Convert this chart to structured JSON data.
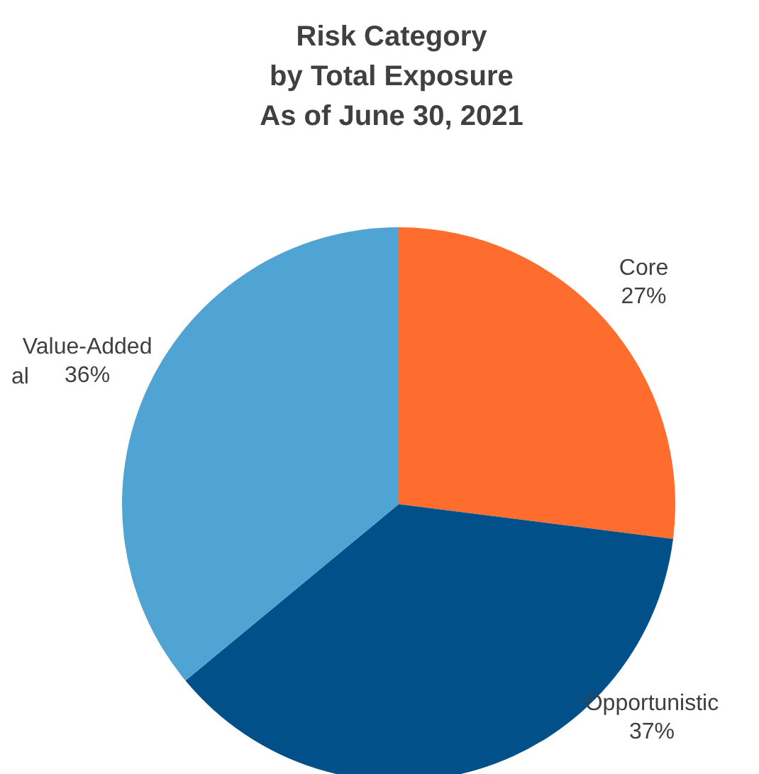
{
  "chart_data": {
    "type": "pie",
    "title": "Risk Category\nby Total Exposure\nAs of June 30, 2021",
    "categories": [
      "Core",
      "Opportunistic",
      "Value-Added"
    ],
    "values": [
      27,
      37,
      36
    ],
    "colors": [
      "#fe6d2e",
      "#01508a",
      "#4fa4d3"
    ],
    "annotations": [
      "al"
    ],
    "value_labels": [
      "27%",
      "37%",
      "36%"
    ]
  }
}
